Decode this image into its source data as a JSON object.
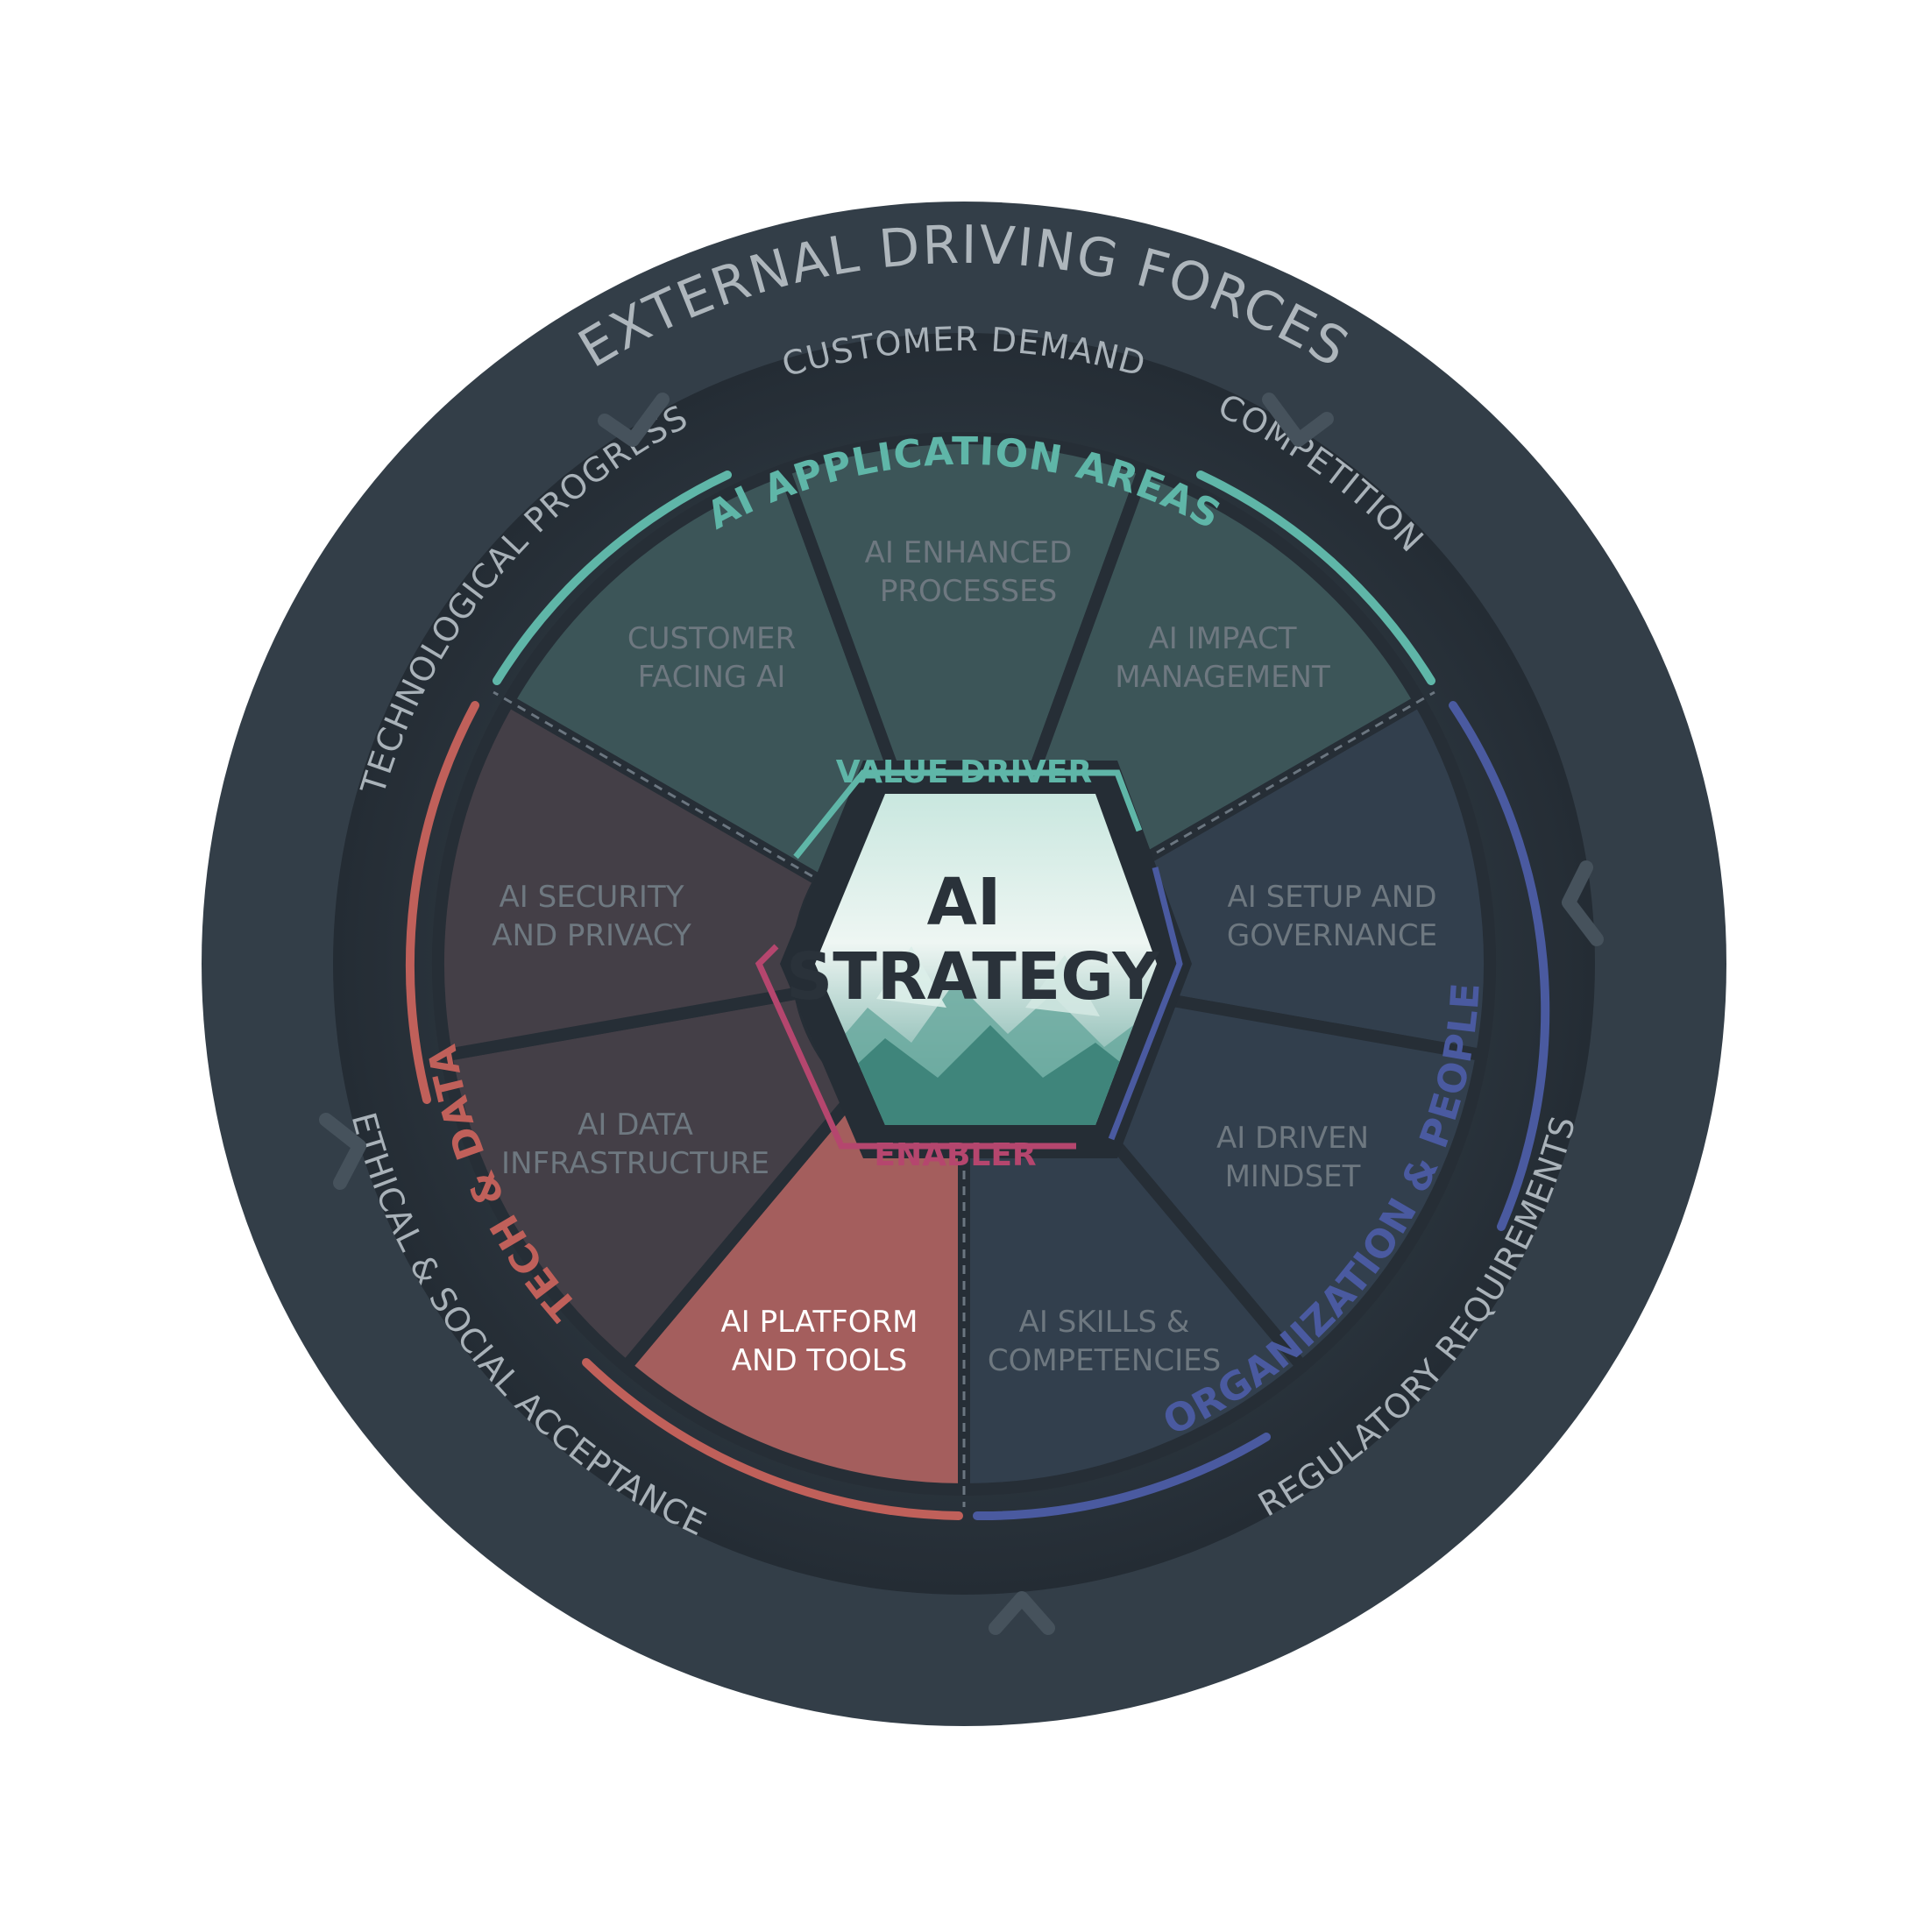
{
  "outer_ring": {
    "title": "EXTERNAL DRIVING FORCES",
    "forces": [
      "CUSTOMER DEMAND",
      "COMPETITION",
      "ETHICAL & SOCIAL ACCEPTANCE",
      "REGULATORY REQUIREMENTS",
      "TECHNOLOGICAL PROGRESS"
    ]
  },
  "categories": {
    "application": "AI APPLICATION AREAS",
    "tech": "TECH & DATA",
    "organization": "ORGANIZATION & PEOPLE"
  },
  "segments": [
    {
      "id": "customer-facing-ai",
      "lines": [
        "CUSTOMER",
        "FACING AI"
      ],
      "active": false
    },
    {
      "id": "ai-enhanced-processes",
      "lines": [
        "AI ENHANCED",
        "PROCESSES"
      ],
      "active": false
    },
    {
      "id": "ai-impact-management",
      "lines": [
        "AI IMPACT",
        "MANAGEMENT"
      ],
      "active": false
    },
    {
      "id": "ai-setup-and-governance",
      "lines": [
        "AI SETUP AND",
        "GOVERNANCE"
      ],
      "active": false
    },
    {
      "id": "ai-driven-mindset",
      "lines": [
        "AI DRIVEN",
        "MINDSET"
      ],
      "active": false
    },
    {
      "id": "ai-skills-competencies",
      "lines": [
        "AI SKILLS &",
        "COMPETENCIES"
      ],
      "active": false
    },
    {
      "id": "ai-platform-and-tools",
      "lines": [
        "AI PLATFORM",
        "AND TOOLS"
      ],
      "active": true
    },
    {
      "id": "ai-data-infrastructure",
      "lines": [
        "AI DATA",
        "INFRASTRUCTURE"
      ],
      "active": false
    },
    {
      "id": "ai-security-and-privacy",
      "lines": [
        "AI SECURITY",
        "AND PRIVACY"
      ],
      "active": false
    }
  ],
  "center": {
    "title_line1": "AI",
    "title_line2": "STRATEGY",
    "top_label": "VALUE DRIVER",
    "bottom_label": "ENABLER"
  },
  "colors": {
    "outer_ring": "#333e48",
    "inner_disc": "#2a323b",
    "application": "#5fb6a8",
    "tech": "#c0605a",
    "organization": "#4a5aa0",
    "enabler": "#b5466e",
    "active_segment": "#a45e5d"
  }
}
